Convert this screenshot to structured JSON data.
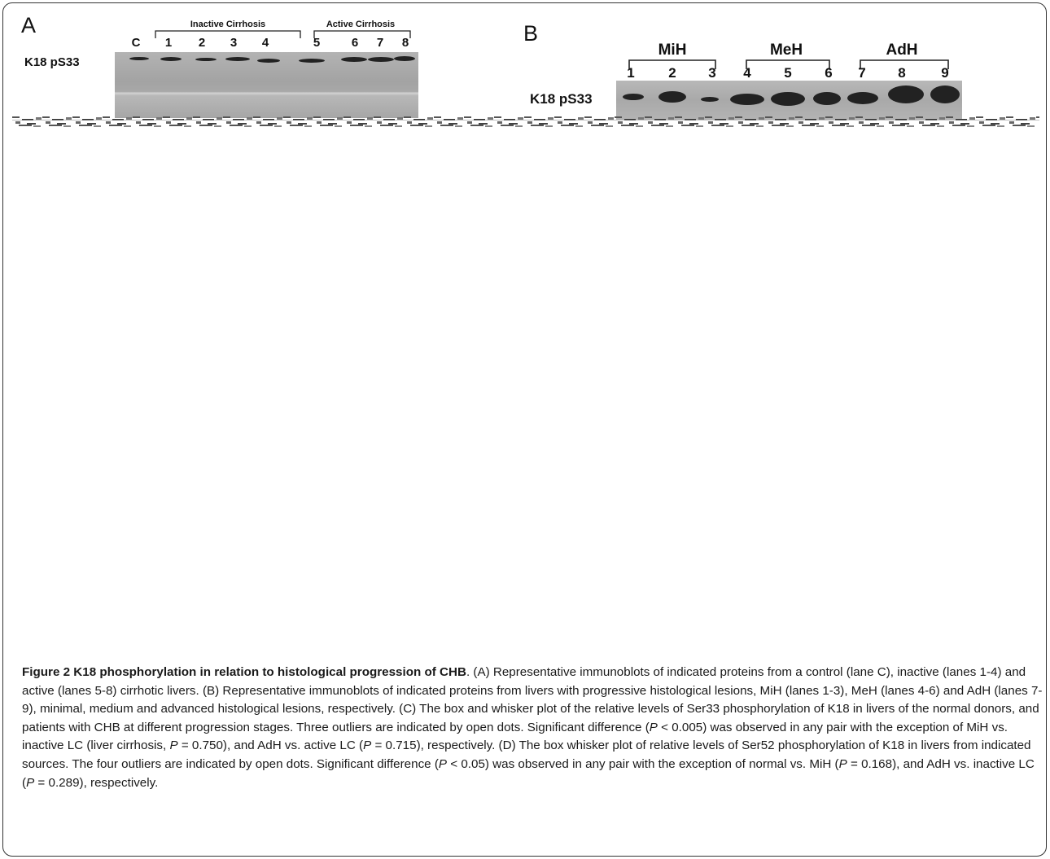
{
  "panels": {
    "A": {
      "letter": "A",
      "row_label": "K18 pS33",
      "groups": [
        {
          "label": "Inactive Cirrhosis"
        },
        {
          "label": "Active Cirrhosis"
        }
      ],
      "lanes": [
        "C",
        "1",
        "2",
        "3",
        "4",
        "5",
        "6",
        "7",
        "8"
      ]
    },
    "B": {
      "letter": "B",
      "row_label": "K18 pS33",
      "groups": [
        {
          "label": "MiH"
        },
        {
          "label": "MeH"
        },
        {
          "label": "AdH"
        }
      ],
      "lanes": [
        "1",
        "2",
        "3",
        "4",
        "5",
        "6",
        "7",
        "8",
        "9"
      ]
    }
  },
  "caption": {
    "title": "Figure 2 K18 phosphorylation in relation to histological progression of CHB",
    "body": [
      {
        "t": ". (A) Representative immunoblots of indicated proteins from a control (lane C), inactive (lanes 1-4) and active (lanes 5-8) cirrhotic livers. (B) Representative immunoblots of indicated proteins from livers with progressive histological lesions, MiH (lanes 1-3), MeH (lanes 4-6) and AdH (lanes 7-9), minimal, medium and advanced histological lesions, respectively. (C) The box and whisker plot of the relative levels of Ser33 phosphorylation of K18 in livers of the normal donors, and patients with CHB at different progression stages. Three outliers are indicated by open dots. Significant difference ("
      },
      {
        "i": "P"
      },
      {
        "t": " < 0.005) was observed in any pair with the exception of MiH vs. inactive LC (liver cirrhosis, "
      },
      {
        "i": "P"
      },
      {
        "t": " = 0.750), and AdH vs. active LC ("
      },
      {
        "i": "P"
      },
      {
        "t": " = 0.715), respectively. (D) The box whisker plot of relative levels of Ser52 phosphorylation of K18 in livers from indicated sources. The four outliers are indicated by open dots. Significant difference ("
      },
      {
        "i": "P"
      },
      {
        "t": " < 0.05) was observed in any pair with the exception of normal vs. MiH ("
      },
      {
        "i": "P"
      },
      {
        "t": " = 0.168), and AdH vs. inactive LC ("
      },
      {
        "i": "P"
      },
      {
        "t": " = 0.289), respectively."
      }
    ]
  }
}
